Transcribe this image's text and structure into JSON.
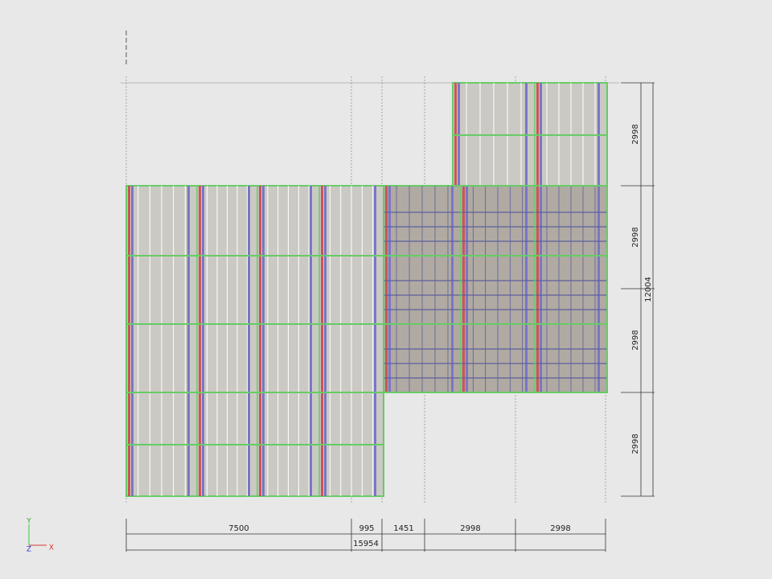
{
  "dimensions": {
    "vertical": [
      "2998",
      "2998",
      "2998",
      "2998"
    ],
    "vertical_total": "12004",
    "horizontal": [
      "7500",
      "995",
      "1451",
      "2998",
      "2998"
    ],
    "horizontal_total": "15954"
  },
  "axes": {
    "y": "Y",
    "z": "Z",
    "x": "X"
  }
}
